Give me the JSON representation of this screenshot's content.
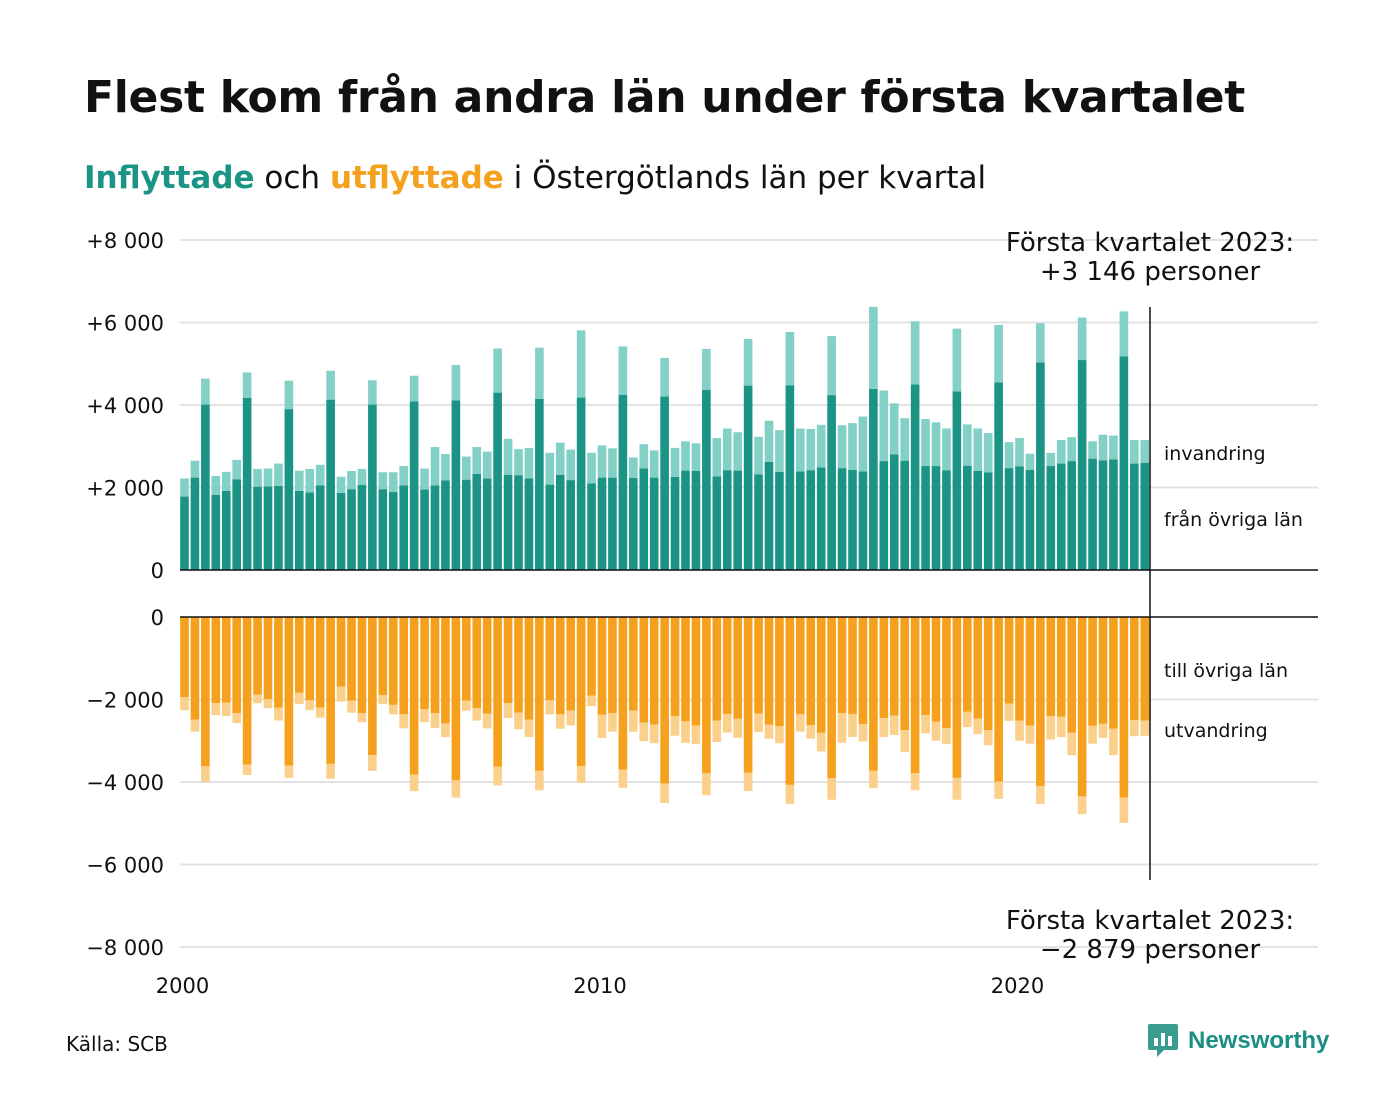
{
  "title": "Flest kom från andra län under första kvartalet",
  "subtitle": {
    "in_word": "Inflyttade",
    "middle": " och ",
    "out_word": "utflyttade",
    "rest": " i Östergötlands län per kvartal"
  },
  "source": "Källa: SCB",
  "brand": "Newsworthy",
  "colors": {
    "in_dark": "#1b9485",
    "in_light": "#83d1c6",
    "out_dark": "#f6a11e",
    "out_light": "#fad08c",
    "grid": "#e3e3e3"
  },
  "chart_data": {
    "type": "bar",
    "x_axis": {
      "ticks": [
        "2000",
        "2010",
        "2020"
      ],
      "range": [
        "2000 Q1",
        "2026 Q4"
      ]
    },
    "periods": {
      "first": "2000 Q1",
      "last": "2023 Q1",
      "frequency": "quarter"
    },
    "top_panel": {
      "ylim": [
        0,
        8000
      ],
      "ticks": [
        "0",
        "+2 000",
        "+4 000",
        "+6 000",
        "+8 000"
      ],
      "series": [
        {
          "name": "från övriga län",
          "stack": "base",
          "values": [
            1780,
            2240,
            4010,
            1820,
            1920,
            2200,
            4170,
            2020,
            2030,
            2040,
            3900,
            1920,
            1880,
            2050,
            4130,
            1870,
            1960,
            2060,
            4010,
            1960,
            1890,
            2050,
            4090,
            1950,
            2050,
            2170,
            4110,
            2190,
            2330,
            2220,
            4300,
            2310,
            2300,
            2220,
            4150,
            2070,
            2310,
            2180,
            4180,
            2100,
            2240,
            2240,
            4250,
            2230,
            2460,
            2240,
            4210,
            2260,
            2410,
            2400,
            4370,
            2270,
            2420,
            2410,
            4470,
            2320,
            2620,
            2380,
            4480,
            2390,
            2420,
            2490,
            4240,
            2470,
            2430,
            2390,
            4390,
            2640,
            2800,
            2650,
            4500,
            2520,
            2520,
            2420,
            4330,
            2530,
            2400,
            2370,
            4550,
            2470,
            2510,
            2430,
            5030,
            2520,
            2580,
            2640,
            5090,
            2700,
            2660,
            2680,
            5180,
            2580,
            2600
          ]
        },
        {
          "name": "invandring",
          "stack": "top",
          "values": [
            440,
            410,
            630,
            460,
            460,
            470,
            620,
            430,
            430,
            540,
            690,
            490,
            570,
            500,
            700,
            390,
            440,
            390,
            590,
            410,
            480,
            470,
            620,
            510,
            930,
            640,
            860,
            560,
            650,
            650,
            1070,
            870,
            630,
            740,
            1240,
            770,
            780,
            740,
            1630,
            740,
            780,
            710,
            1170,
            500,
            590,
            660,
            930,
            700,
            710,
            670,
            990,
            930,
            1010,
            930,
            1130,
            910,
            1000,
            1010,
            1290,
            1040,
            1000,
            1030,
            1430,
            1040,
            1130,
            1330,
            1990,
            1710,
            1240,
            1030,
            1530,
            1140,
            1060,
            1010,
            1520,
            1000,
            1030,
            950,
            1390,
            630,
            690,
            390,
            950,
            320,
            570,
            580,
            1030,
            420,
            620,
            580,
            1090,
            570,
            550
          ]
        }
      ]
    },
    "bottom_panel": {
      "ylim": [
        -8000,
        0
      ],
      "ticks": [
        "0",
        "−2 000",
        "−4 000",
        "−6 000",
        "−8 000"
      ],
      "series": [
        {
          "name": "till övriga län",
          "stack": "base",
          "values": [
            -1940,
            -2490,
            -3620,
            -2090,
            -2080,
            -2330,
            -3580,
            -1880,
            -1990,
            -2200,
            -3600,
            -1840,
            -2020,
            -2200,
            -3560,
            -1690,
            -2030,
            -2330,
            -3350,
            -1890,
            -2130,
            -2360,
            -3820,
            -2230,
            -2330,
            -2580,
            -3960,
            -2030,
            -2210,
            -2340,
            -3630,
            -2090,
            -2320,
            -2490,
            -3730,
            -2020,
            -2360,
            -2270,
            -3620,
            -1910,
            -2370,
            -2330,
            -3700,
            -2270,
            -2560,
            -2610,
            -4040,
            -2400,
            -2530,
            -2630,
            -3790,
            -2510,
            -2350,
            -2470,
            -3770,
            -2340,
            -2610,
            -2650,
            -4070,
            -2360,
            -2620,
            -2810,
            -3910,
            -2330,
            -2350,
            -2600,
            -3730,
            -2450,
            -2390,
            -2740,
            -3790,
            -2380,
            -2540,
            -2690,
            -3900,
            -2300,
            -2460,
            -2740,
            -3990,
            -2100,
            -2510,
            -2630,
            -4100,
            -2400,
            -2420,
            -2800,
            -4350,
            -2640,
            -2590,
            -2710,
            -4380,
            -2500,
            -2510
          ]
        },
        {
          "name": "utvandring",
          "stack": "top",
          "values": [
            -320,
            -290,
            -380,
            -290,
            -320,
            -240,
            -250,
            -210,
            -220,
            -310,
            -300,
            -270,
            -240,
            -240,
            -360,
            -360,
            -290,
            -220,
            -380,
            -220,
            -230,
            -340,
            -400,
            -320,
            -360,
            -330,
            -420,
            -240,
            -300,
            -360,
            -450,
            -360,
            -400,
            -420,
            -470,
            -340,
            -350,
            -360,
            -400,
            -250,
            -560,
            -450,
            -440,
            -510,
            -450,
            -450,
            -470,
            -480,
            -520,
            -450,
            -530,
            -520,
            -450,
            -460,
            -450,
            -450,
            -340,
            -410,
            -460,
            -420,
            -330,
            -450,
            -520,
            -720,
            -560,
            -420,
            -420,
            -460,
            -470,
            -530,
            -410,
            -440,
            -460,
            -390,
            -530,
            -370,
            -380,
            -370,
            -420,
            -420,
            -490,
            -440,
            -430,
            -570,
            -490,
            -550,
            -430,
            -430,
            -340,
            -640,
            -610,
            -390,
            -370
          ]
        }
      ]
    },
    "annotations": {
      "top_line1": "Första kvartalet 2023:",
      "top_line2": "+3 146 personer",
      "bottom_line1": "Första kvartalet 2023:",
      "bottom_line2": "−2 879 personer"
    }
  }
}
